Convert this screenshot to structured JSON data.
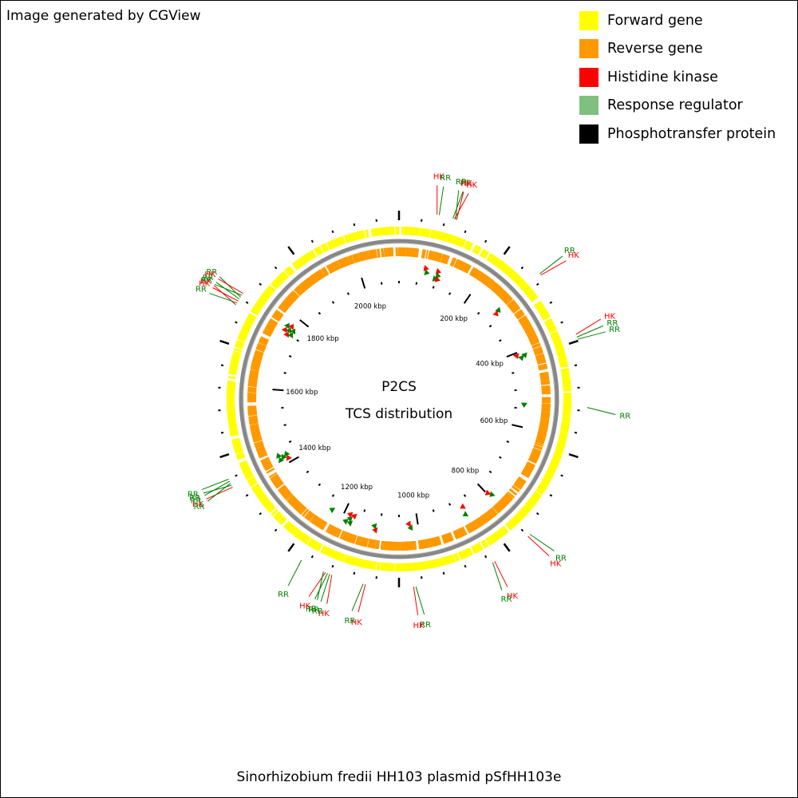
{
  "header": {
    "note": "Image generated by CGView"
  },
  "legend": [
    {
      "label": "Forward gene",
      "color": "#ffff00",
      "icon": "square-swatch"
    },
    {
      "label": "Reverse gene",
      "color": "#ff9900",
      "icon": "square-swatch"
    },
    {
      "label": "Histidine kinase",
      "color": "#ff0000",
      "icon": "square-swatch"
    },
    {
      "label": "Response regulator",
      "color": "#7fbf7f",
      "icon": "square-swatch"
    },
    {
      "label": "Phosphotransfer protein",
      "color": "#000000",
      "icon": "square-swatch"
    }
  ],
  "map": {
    "center_title": "P2CS",
    "center_subtitle": "TCS distribution",
    "footer": "Sinorhizobium fredii HH103 plasmid pSfHH103e",
    "backbone_color": "#888888",
    "forward_color": "#ffff00",
    "reverse_color": "#ff9900",
    "hk_color": "#ff0000",
    "rr_color": "#008000",
    "genome_length_kbp": 2100,
    "tick_labels": [
      "200 kbp",
      "400 kbp",
      "600 kbp",
      "800 kbp",
      "1000 kbp",
      "1200 kbp",
      "1400 kbp",
      "1600 kbp",
      "1800 kbp",
      "2000 kbp"
    ],
    "tick_positions_kbp": [
      200,
      400,
      600,
      800,
      1000,
      1200,
      1400,
      1600,
      1800,
      2000
    ],
    "features": [
      {
        "type": "HK",
        "kbp": 68
      },
      {
        "type": "RR",
        "kbp": 72
      },
      {
        "type": "RR",
        "kbp": 97
      },
      {
        "type": "HK",
        "kbp": 100
      },
      {
        "type": "RR",
        "kbp": 102
      },
      {
        "type": "HK",
        "kbp": 104
      },
      {
        "type": "RR",
        "kbp": 282
      },
      {
        "type": "HK",
        "kbp": 285
      },
      {
        "type": "HK",
        "kbp": 408
      },
      {
        "type": "RR",
        "kbp": 413
      },
      {
        "type": "RR",
        "kbp": 417
      },
      {
        "type": "RR",
        "kbp": 540
      },
      {
        "type": "RR",
        "kbp": 793
      },
      {
        "type": "HK",
        "kbp": 798
      },
      {
        "type": "HK",
        "kbp": 872
      },
      {
        "type": "RR",
        "kbp": 876
      },
      {
        "type": "RR",
        "kbp": 1020
      },
      {
        "type": "HK",
        "kbp": 1024
      },
      {
        "type": "HK",
        "kbp": 1110
      },
      {
        "type": "RR",
        "kbp": 1114
      },
      {
        "type": "HK",
        "kbp": 1172
      },
      {
        "type": "RR",
        "kbp": 1176
      },
      {
        "type": "RR",
        "kbp": 1180
      },
      {
        "type": "HK",
        "kbp": 1184
      },
      {
        "type": "RR",
        "kbp": 1188
      },
      {
        "type": "RR",
        "kbp": 1232
      },
      {
        "type": "HK",
        "kbp": 1412
      },
      {
        "type": "RR",
        "kbp": 1416
      },
      {
        "type": "RR",
        "kbp": 1420
      },
      {
        "type": "RR",
        "kbp": 1424
      },
      {
        "type": "RR",
        "kbp": 1428
      },
      {
        "type": "HK",
        "kbp": 1750
      },
      {
        "type": "RR",
        "kbp": 1754
      },
      {
        "type": "HK",
        "kbp": 1758
      },
      {
        "type": "RR",
        "kbp": 1762
      },
      {
        "type": "RR",
        "kbp": 1766
      },
      {
        "type": "RR",
        "kbp": 1770
      },
      {
        "type": "HK",
        "kbp": 1774
      }
    ]
  }
}
